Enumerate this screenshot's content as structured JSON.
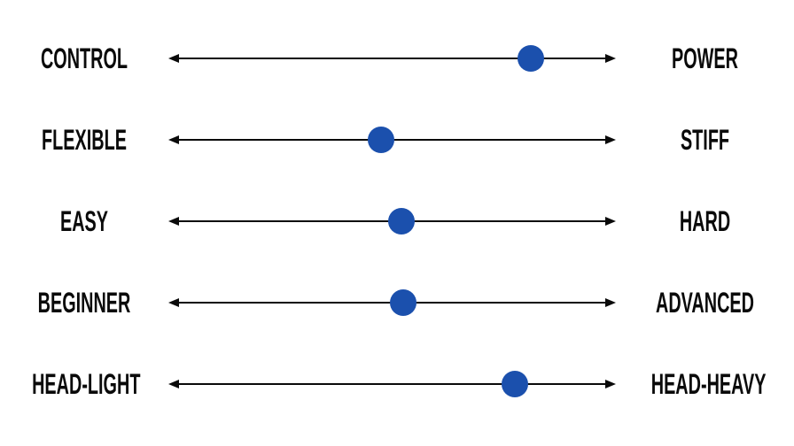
{
  "page": {
    "background_color": "#ffffff",
    "line_color": "#0a0a0a",
    "text_color": "#0a0a0a",
    "dot_color": "#1b50ad"
  },
  "scales": [
    {
      "left": "CONTROL",
      "right": "POWER",
      "position_pct": 81
    },
    {
      "left": "FLEXIBLE",
      "right": "STIFF",
      "position_pct": 47.5
    },
    {
      "left": "EASY",
      "right": "HARD",
      "position_pct": 52
    },
    {
      "left": "BEGINNER",
      "right": "ADVANCED",
      "position_pct": 52.5
    },
    {
      "left": "HEAD-LIGHT",
      "right": "HEAD-HEAVY",
      "position_pct": 77.5
    }
  ],
  "chart_data": {
    "type": "scatter",
    "subtype": "bipolar-dot-scales",
    "description": "Five horizontal double-headed arrow scales, each with a blue dot marking a position between the left pole (0) and right pole (100).",
    "categories": [
      "CONTROL vs POWER",
      "FLEXIBLE vs STIFF",
      "EASY vs HARD",
      "BEGINNER vs ADVANCED",
      "HEAD-LIGHT vs HEAD-HEAVY"
    ],
    "left_poles": [
      "CONTROL",
      "FLEXIBLE",
      "EASY",
      "BEGINNER",
      "HEAD-LIGHT"
    ],
    "right_poles": [
      "POWER",
      "STIFF",
      "HARD",
      "ADVANCED",
      "HEAD-HEAVY"
    ],
    "values": [
      81,
      47.5,
      52,
      52.5,
      77.5
    ],
    "value_range": [
      0,
      100
    ],
    "title": "",
    "xlabel": "",
    "ylabel": "",
    "grid": false,
    "legend": false,
    "marker_color": "#1b50ad"
  }
}
